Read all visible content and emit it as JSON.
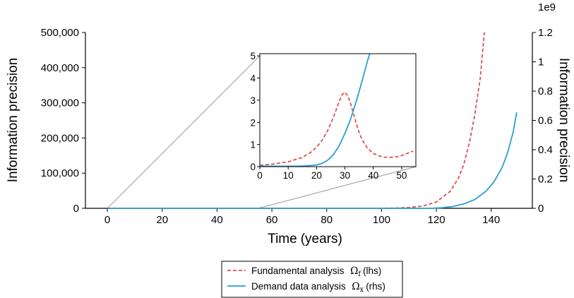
{
  "chart_data": {
    "type": "line",
    "xlabel": "Time",
    "xlabel_unit": "(years)",
    "xlim": [
      -8,
      155
    ],
    "x_ticks": [
      0,
      20,
      40,
      60,
      80,
      100,
      120,
      140
    ],
    "left_axis": {
      "label": "Information precision",
      "lim": [
        0,
        500000
      ],
      "ticks": [
        0,
        100000,
        200000,
        300000,
        400000,
        500000
      ],
      "tick_labels": [
        "0",
        "100,000",
        "200,000",
        "300,000",
        "400,000",
        "500,000"
      ]
    },
    "right_axis": {
      "label": "Information precision",
      "offset_text": "1e9",
      "lim": [
        0,
        1.2
      ],
      "ticks": [
        0,
        0.2,
        0.4,
        0.6,
        0.8,
        1.0,
        1.2
      ],
      "tick_labels": [
        "0",
        "0.2",
        "0.4",
        "0.6",
        "0.8",
        "1",
        "1.2"
      ]
    },
    "series": [
      {
        "name": "Fundamental analysis",
        "symbol": "Ω",
        "subscript": "f",
        "axis_note": "(lhs)",
        "color": "#d9534f",
        "dash": true,
        "axis": "left",
        "x": [
          0,
          100,
          105,
          110,
          115,
          120,
          125,
          128,
          130,
          132,
          134,
          136,
          137.5
        ],
        "y": [
          0,
          0,
          800,
          2500,
          6500,
          18000,
          48000,
          85000,
          125000,
          185000,
          265000,
          370000,
          500000
        ]
      },
      {
        "name": "Demand data analysis",
        "symbol": "Ω",
        "subscript": "x",
        "axis_note": "(rhs)",
        "color": "#2a9fd0",
        "dash": false,
        "axis": "right",
        "x": [
          0,
          118,
          122,
          126,
          130,
          134,
          138,
          141,
          144,
          146,
          148,
          149.3
        ],
        "y": [
          0,
          0,
          0.004,
          0.012,
          0.03,
          0.06,
          0.115,
          0.18,
          0.28,
          0.38,
          0.52,
          0.655
        ]
      }
    ],
    "inset": {
      "xlim": [
        0,
        55
      ],
      "ylim": [
        0,
        5.1
      ],
      "x_ticks": [
        0,
        10,
        20,
        30,
        40,
        50
      ],
      "y_ticks": [
        0,
        1,
        2,
        3,
        4,
        5
      ],
      "zoom_source": {
        "x": [
          0,
          55
        ],
        "y": [
          0,
          5
        ]
      },
      "series": [
        {
          "ref": "Fundamental analysis",
          "color": "#d9534f",
          "dash": true,
          "x": [
            0,
            5,
            10,
            15,
            18,
            20,
            22,
            24,
            26,
            27,
            28,
            29,
            30,
            31,
            32,
            33,
            34,
            35,
            36,
            38,
            40,
            42,
            44,
            46,
            48,
            50,
            52,
            54
          ],
          "y": [
            0.06,
            0.12,
            0.22,
            0.42,
            0.65,
            0.88,
            1.2,
            1.65,
            2.25,
            2.6,
            2.95,
            3.25,
            3.36,
            3.2,
            2.85,
            2.4,
            1.95,
            1.55,
            1.22,
            0.82,
            0.6,
            0.48,
            0.43,
            0.42,
            0.44,
            0.5,
            0.6,
            0.7
          ]
        },
        {
          "ref": "Demand data analysis",
          "color": "#2a9fd0",
          "dash": false,
          "x": [
            0,
            10,
            15,
            18,
            20,
            22,
            24,
            26,
            28,
            30,
            32,
            34,
            36,
            38,
            38.8
          ],
          "y": [
            0.02,
            0.02,
            0.03,
            0.05,
            0.08,
            0.15,
            0.3,
            0.55,
            0.95,
            1.5,
            2.15,
            2.95,
            3.85,
            4.8,
            5.1
          ]
        }
      ]
    },
    "legend": {
      "placement": "bottom-center"
    }
  }
}
